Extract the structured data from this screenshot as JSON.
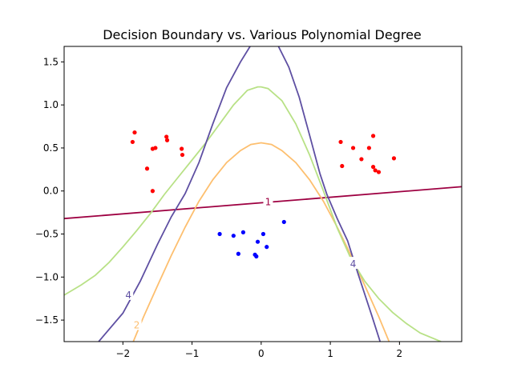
{
  "chart_data": {
    "type": "scatter",
    "title": "Decision Boundary vs. Various Polynomial Degree",
    "xlabel": "",
    "ylabel": "",
    "xlim": [
      -2.85,
      2.9
    ],
    "ylim": [
      -1.75,
      1.68
    ],
    "x_ticks": [
      -2,
      -1,
      0,
      1,
      2
    ],
    "y_ticks": [
      -1.5,
      -1.0,
      -0.5,
      0.0,
      0.5,
      1.0,
      1.5
    ],
    "x_tick_labels": [
      "−2",
      "−1",
      "0",
      "1",
      "2"
    ],
    "y_tick_labels": [
      "−1.5",
      "−1.0",
      "−0.5",
      "0.0",
      "0.5",
      "1.0",
      "1.5"
    ],
    "grid": false,
    "colors": {
      "red_points": "#ff0000",
      "blue_points": "#0000ff",
      "degree1": "#9e0142",
      "degree2": "#fdbf6f",
      "degree3": "#b8e186",
      "degree4": "#5e4fa2"
    },
    "points_red": [
      [
        -1.86,
        0.57
      ],
      [
        -1.83,
        0.68
      ],
      [
        -1.65,
        0.26
      ],
      [
        -1.57,
        0.49
      ],
      [
        -1.53,
        0.5
      ],
      [
        -1.37,
        0.63
      ],
      [
        -1.36,
        0.59
      ],
      [
        -1.15,
        0.49
      ],
      [
        -1.14,
        0.42
      ],
      [
        -1.57,
        0.0
      ],
      [
        1.15,
        0.57
      ],
      [
        1.17,
        0.29
      ],
      [
        1.33,
        0.5
      ],
      [
        1.45,
        0.37
      ],
      [
        1.56,
        0.5
      ],
      [
        1.62,
        0.64
      ],
      [
        1.62,
        0.28
      ],
      [
        1.65,
        0.24
      ],
      [
        1.7,
        0.22
      ],
      [
        1.92,
        0.38
      ]
    ],
    "points_blue": [
      [
        -0.6,
        -0.5
      ],
      [
        -0.4,
        -0.52
      ],
      [
        -0.33,
        -0.73
      ],
      [
        -0.26,
        -0.48
      ],
      [
        -0.09,
        -0.74
      ],
      [
        -0.07,
        -0.76
      ],
      [
        -0.05,
        -0.59
      ],
      [
        0.03,
        -0.5
      ],
      [
        0.08,
        -0.65
      ],
      [
        0.33,
        -0.36
      ]
    ],
    "contours": [
      {
        "label": "1",
        "color": "#9e0142",
        "points": [
          [
            -2.85,
            -0.32
          ],
          [
            2.9,
            0.05
          ]
        ],
        "label_at": [
          0.1,
          -0.12
        ]
      },
      {
        "label": "2",
        "color": "#fdbf6f",
        "points": [
          [
            -1.85,
            -1.75
          ],
          [
            -1.7,
            -1.46
          ],
          [
            -1.5,
            -1.1
          ],
          [
            -1.3,
            -0.75
          ],
          [
            -1.1,
            -0.42
          ],
          [
            -0.9,
            -0.12
          ],
          [
            -0.7,
            0.13
          ],
          [
            -0.5,
            0.33
          ],
          [
            -0.3,
            0.47
          ],
          [
            -0.15,
            0.54
          ],
          [
            0.0,
            0.56
          ],
          [
            0.15,
            0.54
          ],
          [
            0.3,
            0.47
          ],
          [
            0.5,
            0.33
          ],
          [
            0.7,
            0.13
          ],
          [
            0.9,
            -0.12
          ],
          [
            1.1,
            -0.42
          ],
          [
            1.3,
            -0.75
          ],
          [
            1.5,
            -1.1
          ],
          [
            1.7,
            -1.46
          ],
          [
            1.85,
            -1.75
          ]
        ],
        "label_at": [
          -1.8,
          -1.55
        ]
      },
      {
        "label": "",
        "color": "#b8e186",
        "points": [
          [
            -2.85,
            -1.21
          ],
          [
            -2.6,
            -1.09
          ],
          [
            -2.4,
            -0.98
          ],
          [
            -2.2,
            -0.83
          ],
          [
            -2.0,
            -0.65
          ],
          [
            -1.8,
            -0.46
          ],
          [
            -1.6,
            -0.26
          ],
          [
            -1.4,
            -0.04
          ],
          [
            -1.2,
            0.16
          ],
          [
            -1.0,
            0.36
          ],
          [
            -0.8,
            0.56
          ],
          [
            -0.6,
            0.78
          ],
          [
            -0.4,
            1.0
          ],
          [
            -0.2,
            1.17
          ],
          [
            -0.05,
            1.21
          ],
          [
            0.0,
            1.21
          ],
          [
            0.1,
            1.19
          ],
          [
            0.3,
            1.05
          ],
          [
            0.5,
            0.78
          ],
          [
            0.7,
            0.42
          ],
          [
            0.9,
            0.0
          ],
          [
            1.1,
            -0.43
          ],
          [
            1.3,
            -0.79
          ],
          [
            1.5,
            -1.05
          ],
          [
            1.7,
            -1.25
          ],
          [
            1.9,
            -1.41
          ],
          [
            2.1,
            -1.54
          ],
          [
            2.3,
            -1.65
          ],
          [
            2.6,
            -1.75
          ]
        ]
      },
      {
        "label": "4",
        "color": "#5e4fa2",
        "segments": [
          [
            [
              -2.35,
              -1.75
            ],
            [
              -2.0,
              -1.42
            ],
            [
              -1.75,
              -1.05
            ],
            [
              -1.5,
              -0.62
            ],
            [
              -1.3,
              -0.3
            ],
            [
              -1.1,
              -0.03
            ],
            [
              -0.9,
              0.33
            ],
            [
              -0.7,
              0.78
            ],
            [
              -0.5,
              1.2
            ],
            [
              -0.3,
              1.5
            ],
            [
              -0.16,
              1.68
            ]
          ],
          [
            [
              0.25,
              1.68
            ],
            [
              0.4,
              1.44
            ],
            [
              0.55,
              1.09
            ],
            [
              0.7,
              0.65
            ],
            [
              0.85,
              0.2
            ],
            [
              0.95,
              -0.04
            ],
            [
              1.1,
              -0.32
            ],
            [
              1.25,
              -0.58
            ],
            [
              1.4,
              -0.96
            ],
            [
              1.6,
              -1.45
            ],
            [
              1.72,
              -1.75
            ]
          ]
        ],
        "labels_at": [
          [
            -1.92,
            -1.2
          ],
          [
            1.33,
            -0.84
          ]
        ]
      }
    ]
  }
}
